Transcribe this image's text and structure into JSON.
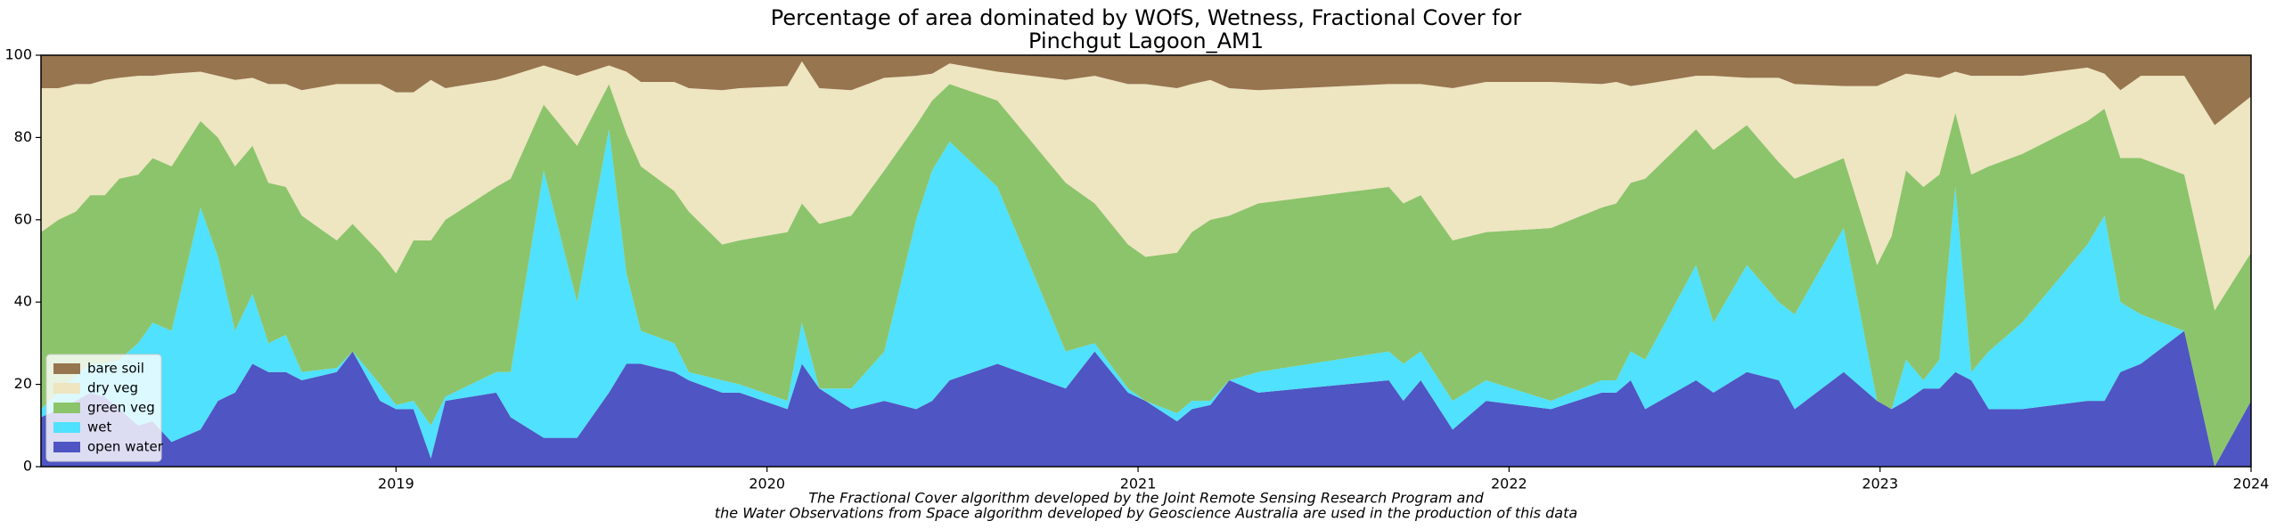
{
  "chart_data": {
    "type": "stacked_area",
    "title": [
      "Percentage of area dominated by WOfS, Wetness, Fractional Cover for",
      "Pinchgut Lagoon_AM1"
    ],
    "footnote": [
      "The Fractional Cover algorithm developed by the Joint Remote Sensing Research Program and",
      "the Water Observations from Space algorithm developed by Geoscience Australia are used in the production of this data"
    ],
    "x": [
      2018.043,
      2018.09,
      2018.137,
      2018.176,
      2018.215,
      2018.254,
      2018.305,
      2018.344,
      2018.395,
      2018.473,
      2018.52,
      2018.566,
      2018.613,
      2018.656,
      2018.703,
      2018.746,
      2018.84,
      2018.883,
      2018.957,
      2019.0,
      2019.047,
      2019.094,
      2019.133,
      2019.27,
      2019.309,
      2019.398,
      2019.488,
      2019.574,
      2019.621,
      2019.66,
      2019.75,
      2019.789,
      2019.879,
      2019.926,
      2020.055,
      2020.094,
      2020.141,
      2020.227,
      2020.316,
      2020.402,
      2020.445,
      2020.492,
      2020.621,
      2020.805,
      2020.883,
      2020.973,
      2021.02,
      2021.105,
      2021.145,
      2021.195,
      2021.246,
      2021.324,
      2021.676,
      2021.715,
      2021.762,
      2021.848,
      2021.938,
      2022.113,
      2022.25,
      2022.289,
      2022.328,
      2022.367,
      2022.504,
      2022.551,
      2022.641,
      2022.727,
      2022.77,
      2022.902,
      2022.992,
      2023.031,
      2023.07,
      2023.117,
      2023.16,
      2023.203,
      2023.246,
      2023.293,
      2023.383,
      2023.559,
      2023.605,
      2023.648,
      2023.703,
      2023.82,
      2023.902,
      2024.0
    ],
    "series": [
      {
        "name": "open water",
        "color": "#4f55c2",
        "values": [
          12,
          14,
          16,
          18,
          17,
          14,
          10,
          11,
          6,
          9,
          16,
          18,
          25,
          23,
          23,
          21,
          23,
          28,
          16,
          14,
          14,
          2,
          16,
          18,
          12,
          7,
          7,
          18,
          25,
          25,
          23,
          21,
          18,
          18,
          14,
          25,
          19,
          14,
          16,
          14,
          16,
          21,
          25,
          19,
          28,
          18,
          16,
          11,
          14,
          15,
          21,
          18,
          21,
          16,
          21,
          9,
          16,
          14,
          18,
          18,
          21,
          14,
          21,
          18,
          23,
          21,
          14,
          23,
          16,
          14,
          16,
          19,
          19,
          23,
          21,
          14,
          14,
          16,
          16,
          23,
          25,
          33,
          0,
          16
        ]
      },
      {
        "name": "wet",
        "color": "#4fe1fd",
        "values": [
          2,
          4,
          6,
          7,
          8,
          12,
          20,
          24,
          27,
          54,
          35,
          15,
          17,
          7,
          9,
          2,
          1,
          0,
          4,
          1,
          2,
          8,
          1,
          5,
          11,
          65,
          33,
          64,
          22,
          8,
          7,
          2,
          3,
          2,
          2,
          10,
          0,
          5,
          12,
          46,
          56,
          58,
          43,
          9,
          2,
          1,
          0,
          2,
          2,
          1,
          0,
          5,
          7,
          9,
          7,
          7,
          5,
          2,
          3,
          3,
          7,
          12,
          28,
          17,
          26,
          19,
          23,
          35,
          0,
          0,
          10,
          2,
          7,
          45,
          2,
          14,
          21,
          38,
          45,
          17,
          12,
          0,
          0,
          0
        ]
      },
      {
        "name": "green veg",
        "color": "#8cc46b",
        "values": [
          43,
          42,
          40,
          41,
          41,
          44,
          41,
          40,
          40,
          21,
          29,
          40,
          36,
          39,
          36,
          38,
          31,
          31,
          32,
          32,
          39,
          45,
          43,
          45,
          47,
          16,
          38,
          11,
          34,
          40,
          37,
          39,
          33,
          35,
          41,
          29,
          40,
          42,
          44,
          23,
          17,
          14,
          21,
          41,
          34,
          35,
          35,
          39,
          41,
          44,
          40,
          41,
          40,
          39,
          38,
          39,
          36,
          42,
          42,
          43,
          41,
          44,
          33,
          42,
          34,
          34,
          33,
          17,
          33,
          42,
          46,
          47,
          45,
          18,
          48,
          45,
          41,
          30,
          26,
          35,
          38,
          38,
          38,
          36
        ]
      },
      {
        "name": "dry veg",
        "color": "#eee5c1",
        "values": [
          35,
          32,
          31,
          27,
          28,
          24.5,
          24,
          20,
          22.5,
          12,
          15,
          21,
          16.5,
          24,
          25,
          30.5,
          38,
          34,
          41,
          44,
          36,
          39,
          32,
          26,
          25,
          9.5,
          17,
          4.5,
          15,
          20.5,
          26.5,
          30,
          37.5,
          37,
          35.5,
          34.5,
          33,
          30.5,
          22.5,
          12,
          6.5,
          5,
          7,
          25,
          31,
          39,
          42,
          40,
          36,
          34,
          31,
          27.5,
          25,
          29,
          27,
          37,
          36.5,
          35.5,
          30,
          29.5,
          23.5,
          23,
          13,
          18,
          11.5,
          20.5,
          23,
          17.5,
          43.5,
          38,
          23.5,
          27,
          23.5,
          10,
          24,
          22,
          19,
          13,
          8.5,
          16.5,
          20,
          24,
          45,
          38
        ]
      },
      {
        "name": "bare soil",
        "color": "#97754f",
        "values": [
          8,
          8,
          7,
          7,
          6,
          5.5,
          5,
          5,
          4.5,
          4,
          5,
          6,
          5.5,
          7,
          7,
          8.5,
          7,
          7,
          7,
          9,
          9,
          6,
          8,
          6,
          5,
          2.5,
          5,
          2.5,
          4,
          6.5,
          6.5,
          8,
          8.5,
          8,
          7.5,
          1.5,
          8,
          8.5,
          5.5,
          5,
          4.5,
          2,
          4,
          6,
          5,
          7,
          7,
          8,
          7,
          6,
          8,
          8.5,
          7,
          7,
          7,
          8,
          6.5,
          6.5,
          7,
          6.5,
          7.5,
          7,
          5,
          5,
          5.5,
          5.5,
          7,
          7.5,
          7.5,
          6,
          4.5,
          5,
          5.5,
          4,
          5,
          5,
          5,
          3,
          4.5,
          8.5,
          5,
          5,
          17,
          10
        ]
      }
    ],
    "xlim": [
      2018.043,
      2024
    ],
    "xticks": [
      2019,
      2020,
      2021,
      2022,
      2023,
      2024
    ],
    "ylim": [
      0,
      100
    ],
    "yticks": [
      0,
      20,
      40,
      60,
      80,
      100
    ],
    "grid": false,
    "legend": "lower left"
  }
}
